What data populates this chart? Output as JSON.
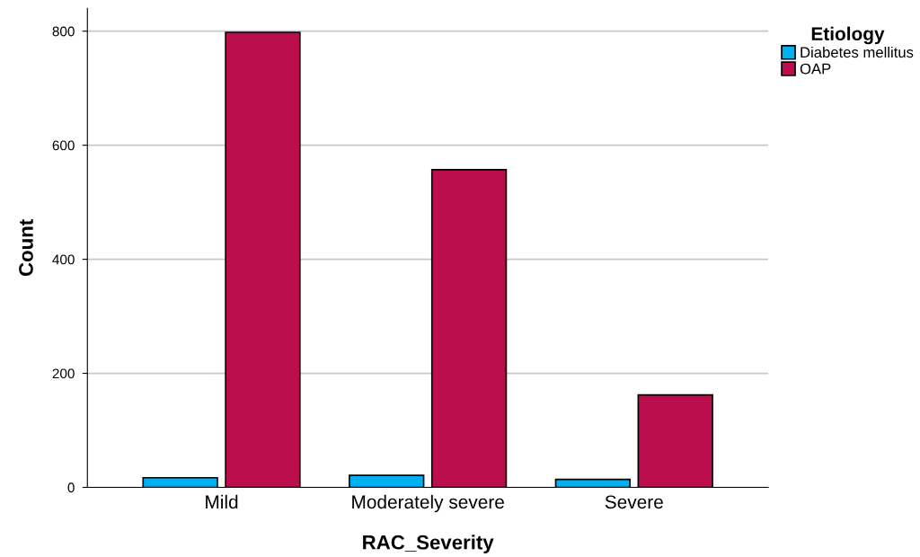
{
  "chart_data": {
    "type": "bar",
    "xlabel": "RAC_Severity",
    "ylabel": "Count",
    "legend_title": "Etiology",
    "categories": [
      "Mild",
      "Moderately severe",
      "Severe"
    ],
    "series": [
      {
        "name": "Diabetes mellitus",
        "color": "#00b0f0",
        "values": [
          17,
          21,
          14
        ]
      },
      {
        "name": "OAP",
        "color": "#bc0e4c",
        "values": [
          798,
          557,
          162
        ]
      }
    ],
    "ylim": [
      0,
      840
    ],
    "yticks": [
      0,
      200,
      400,
      600,
      800
    ],
    "grid": "y",
    "legend": "top right"
  }
}
